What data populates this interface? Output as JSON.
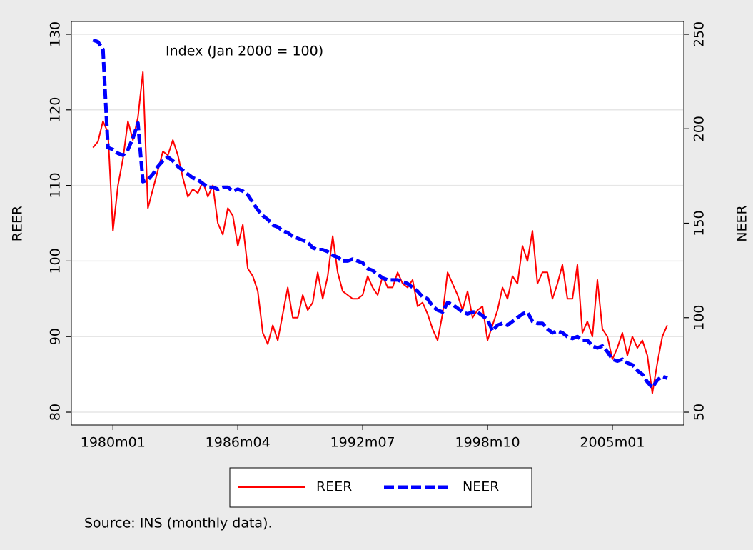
{
  "chart_data": {
    "type": "line",
    "annotation": "Index (Jan 2000 = 100)",
    "note": "Source: INS (monthly data).",
    "y_label": "REER",
    "y2_label": "NEER",
    "legend": "bottom",
    "grid": true,
    "x": [
      "1979m01",
      "1979m04",
      "1979m07",
      "1979m10",
      "1980m01",
      "1980m04",
      "1980m07",
      "1980m10",
      "1981m01",
      "1981m04",
      "1981m07",
      "1981m10",
      "1982m01",
      "1982m04",
      "1982m07",
      "1982m10",
      "1983m01",
      "1983m04",
      "1983m07",
      "1983m10",
      "1984m01",
      "1984m04",
      "1984m07",
      "1984m10",
      "1985m01",
      "1985m04",
      "1985m07",
      "1985m10",
      "1986m01",
      "1986m04",
      "1986m07",
      "1986m10",
      "1987m01",
      "1987m04",
      "1987m07",
      "1987m10",
      "1988m01",
      "1988m04",
      "1988m07",
      "1988m10",
      "1989m01",
      "1989m04",
      "1989m07",
      "1989m10",
      "1990m01",
      "1990m04",
      "1990m07",
      "1990m10",
      "1991m01",
      "1991m04",
      "1991m07",
      "1991m10",
      "1992m01",
      "1992m04",
      "1992m07",
      "1992m10",
      "1993m01",
      "1993m04",
      "1993m07",
      "1993m10",
      "1994m01",
      "1994m04",
      "1994m07",
      "1994m10",
      "1995m01",
      "1995m04",
      "1995m07",
      "1995m10",
      "1996m01",
      "1996m04",
      "1996m07",
      "1996m10",
      "1997m01",
      "1997m04",
      "1997m07",
      "1997m10",
      "1998m01",
      "1998m04",
      "1998m07",
      "1998m10",
      "1999m01",
      "1999m04",
      "1999m07",
      "1999m10",
      "2000m01",
      "2000m04",
      "2000m07",
      "2000m10",
      "2001m01",
      "2001m04",
      "2001m07",
      "2001m10",
      "2002m01",
      "2002m04",
      "2002m07",
      "2002m10",
      "2003m01",
      "2003m04",
      "2003m07",
      "2003m10",
      "2004m01",
      "2004m04",
      "2004m07",
      "2004m10",
      "2005m01",
      "2005m04",
      "2005m07",
      "2005m10",
      "2006m01",
      "2006m04",
      "2006m07",
      "2006m10",
      "2007m01",
      "2007m04",
      "2007m07",
      "2007m10"
    ],
    "xticks": [
      "1980m01",
      "1986m04",
      "1992m07",
      "1998m10",
      "2005m01"
    ],
    "ylim": [
      78.3,
      131.7
    ],
    "yticks": [
      80,
      90,
      100,
      110,
      120,
      130
    ],
    "y2lim": [
      43.2,
      256.8
    ],
    "y2ticks": [
      50,
      100,
      150,
      200,
      250
    ],
    "series": [
      {
        "name": "REER",
        "color": "#ff0000",
        "values": [
          115,
          115.8,
          118.5,
          117,
          104,
          110,
          113.5,
          118.5,
          116,
          119,
          125,
          107,
          109.5,
          112,
          114.5,
          114,
          116,
          114,
          111,
          108.5,
          109.5,
          109,
          110.5,
          108.5,
          110,
          105,
          103.5,
          107,
          106,
          102,
          104.8,
          99,
          98,
          96,
          90.5,
          89,
          91.5,
          89.5,
          93,
          96.5,
          92.5,
          92.5,
          95.5,
          93.5,
          94.5,
          98.5,
          95,
          98,
          103.3,
          98.5,
          96,
          95.5,
          95,
          95,
          95.5,
          98,
          96.5,
          95.5,
          98,
          96.5,
          96.5,
          98.5,
          97,
          96.5,
          97.5,
          94,
          94.5,
          93,
          91,
          89.5,
          93,
          98.5,
          97,
          95.5,
          93.5,
          96,
          92.5,
          93.5,
          94,
          89.5,
          91.5,
          93.5,
          96.5,
          95,
          98,
          97,
          102,
          100,
          104,
          97,
          98.5,
          98.5,
          95,
          97,
          99.5,
          95,
          95,
          99.5,
          90.5,
          92,
          90,
          97.5,
          91,
          90,
          87,
          88.5,
          90.5,
          87.5,
          90,
          88.5,
          89.5,
          87.5,
          82.5,
          86.5,
          90,
          91.5
        ]
      },
      {
        "name": "NEER",
        "color": "#0000ff",
        "axis": "y2",
        "dashed": true,
        "values": [
          247,
          246,
          242,
          190,
          189,
          187,
          186,
          189,
          195,
          203,
          172,
          173,
          176,
          180,
          183,
          185,
          183,
          180,
          178,
          176,
          174,
          173,
          171,
          169,
          169,
          168,
          169,
          169,
          167,
          168,
          167,
          165,
          161,
          157,
          154,
          152,
          149,
          148,
          146,
          145,
          143,
          142,
          141,
          140,
          137,
          136,
          136,
          135,
          133,
          132,
          130,
          130,
          131,
          130,
          129,
          126,
          125,
          123,
          121,
          120,
          120,
          120,
          119,
          118,
          116,
          114,
          111,
          110,
          106,
          104,
          103,
          108,
          107,
          105,
          103,
          102,
          103,
          103,
          101,
          99,
          93,
          96,
          97,
          96,
          98,
          100,
          102,
          103,
          98,
          97,
          97,
          94,
          92,
          93,
          92,
          90,
          89,
          90,
          88,
          88,
          85,
          84,
          85,
          82,
          78,
          77,
          78,
          76,
          75,
          72,
          70,
          66,
          63,
          67,
          69,
          68
        ]
      }
    ]
  }
}
